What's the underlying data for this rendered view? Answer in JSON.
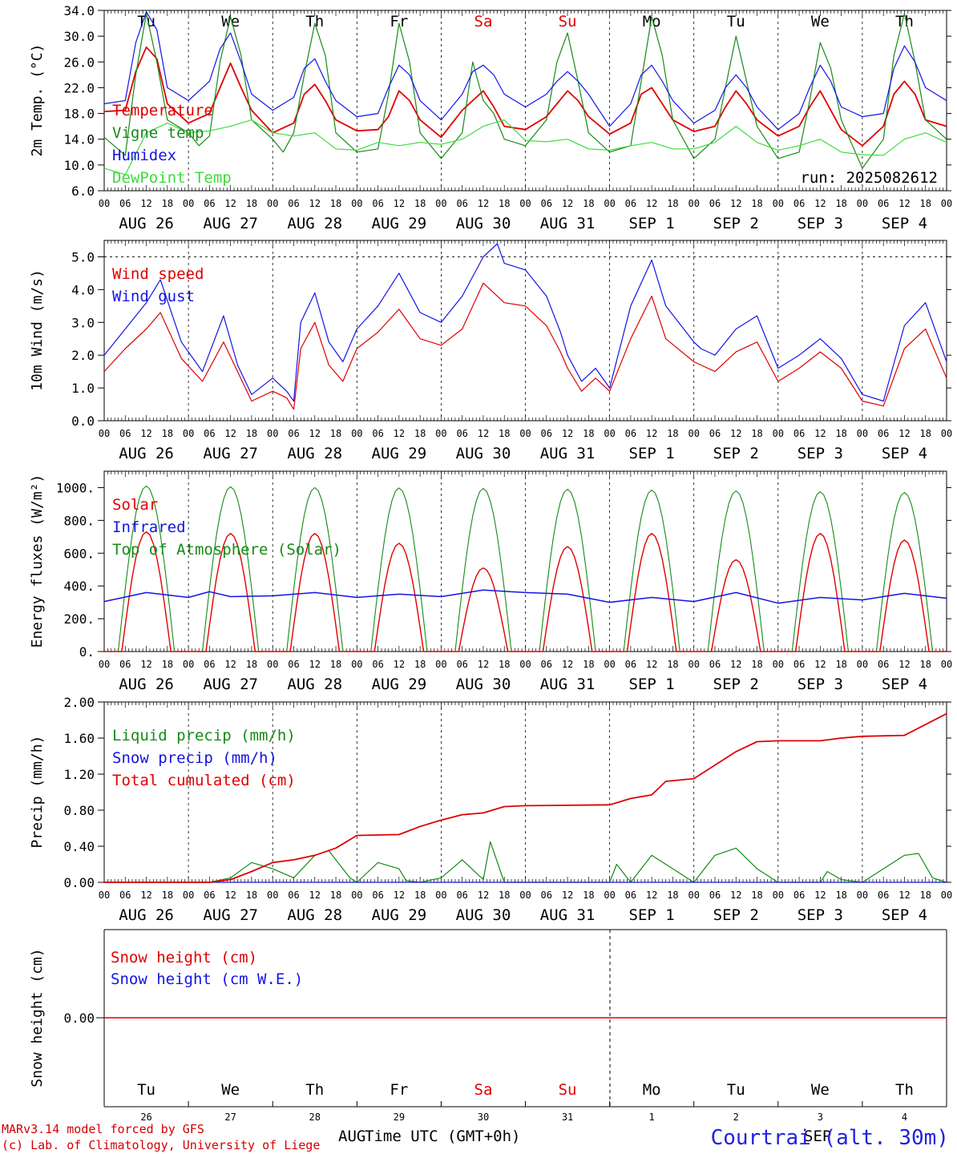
{
  "colors": {
    "red": "#e00000",
    "green": "#168a16",
    "blue": "#1414e6",
    "lightgreen": "#3cdc3c",
    "weekend": "#e00000"
  },
  "days": {
    "dow": [
      "Tu",
      "We",
      "Th",
      "Fr",
      "Sa",
      "Su",
      "Mo",
      "Tu",
      "We",
      "Th"
    ],
    "weekend_flags": [
      false,
      false,
      false,
      false,
      true,
      true,
      false,
      false,
      false,
      false
    ],
    "dates": [
      "AUG 26",
      "AUG 27",
      "AUG 28",
      "AUG 29",
      "AUG 30",
      "AUG 31",
      "SEP  1",
      "SEP  2",
      "SEP  3",
      "SEP  4"
    ],
    "day_numbers": [
      "26",
      "27",
      "28",
      "29",
      "30",
      "31",
      "1",
      "2",
      "3",
      "4"
    ],
    "hour_ticks": [
      "00",
      "06",
      "12",
      "18"
    ],
    "final_hour": "00"
  },
  "footer": {
    "model": "MARv3.14 model forced by GFS",
    "lab": "(c) Lab. of Climatology, University of Liege",
    "month_left": "AUG",
    "month_right": "SEP",
    "xaxis_title": "Time UTC (GMT+0h)",
    "station": "Courtrai (alt. 30m)"
  },
  "chart_data": [
    {
      "type": "line",
      "ylabel": "2m Temp. (°C)",
      "ylim": [
        6,
        34
      ],
      "yticks": [
        "34.0",
        "30.0",
        "26.0",
        "22.0",
        "18.0",
        "14.0",
        "10.0",
        "6.0"
      ],
      "annotation": "run: 2025082612",
      "x_unit": "hours since AUG 26 00 UTC",
      "legend": [
        "Temperature",
        "Vigne temp",
        "Humidex",
        "DewPoint Temp"
      ],
      "series": [
        {
          "name": "Temperature",
          "color": "red",
          "x": [
            0,
            6,
            9,
            12,
            15,
            18,
            24,
            30,
            33,
            36,
            39,
            42,
            48,
            54,
            57,
            60,
            63,
            66,
            72,
            78,
            81,
            84,
            87,
            90,
            96,
            102,
            105,
            108,
            111,
            114,
            120,
            126,
            129,
            132,
            135,
            138,
            144,
            150,
            153,
            156,
            159,
            162,
            168,
            174,
            177,
            180,
            183,
            186,
            192,
            198,
            201,
            204,
            207,
            210,
            216,
            222,
            225,
            228,
            231,
            234,
            240
          ],
          "y": [
            18.3,
            18.5,
            24.5,
            28.3,
            26.5,
            19.5,
            16.5,
            18,
            22,
            25.8,
            22,
            18.5,
            15,
            16.5,
            21,
            22.5,
            20,
            17,
            15.3,
            15.5,
            17.5,
            21.5,
            20,
            17,
            14.3,
            18.5,
            20,
            21.5,
            19,
            16,
            15.5,
            17.5,
            19.5,
            21.5,
            20,
            17.5,
            14.8,
            16.5,
            21,
            22,
            19.5,
            17,
            15.2,
            16,
            19,
            21.5,
            19.5,
            17,
            14.5,
            16,
            19,
            21.5,
            18.5,
            15.5,
            13,
            16,
            21,
            23,
            21,
            17,
            16
          ]
        },
        {
          "name": "Vigne temp",
          "color": "green",
          "x": [
            0,
            6,
            9,
            12,
            15,
            18,
            24,
            27,
            30,
            33,
            36,
            39,
            42,
            48,
            51,
            54,
            57,
            60,
            63,
            66,
            72,
            78,
            81,
            84,
            87,
            90,
            96,
            102,
            105,
            108,
            111,
            114,
            120,
            126,
            129,
            132,
            135,
            138,
            144,
            150,
            153,
            156,
            159,
            162,
            168,
            174,
            177,
            180,
            183,
            186,
            192,
            198,
            201,
            204,
            207,
            210,
            216,
            222,
            225,
            228,
            231,
            234,
            240
          ],
          "y": [
            14.3,
            11.5,
            24,
            33.5,
            26,
            17,
            15,
            13,
            14.5,
            26,
            33,
            27,
            17,
            14,
            12,
            15,
            24,
            32,
            27,
            15,
            12,
            12.5,
            21,
            32,
            26,
            15,
            11,
            15,
            26,
            20,
            18,
            14,
            13,
            17,
            26,
            30.5,
            23,
            15,
            12,
            13,
            23,
            33,
            27,
            17,
            11,
            14,
            22,
            30,
            23,
            16,
            11,
            12,
            20,
            29,
            25,
            17,
            9.5,
            14,
            27,
            33.5,
            26,
            17,
            14
          ]
        },
        {
          "name": "Humidex",
          "color": "blue",
          "x": [
            0,
            6,
            9,
            12,
            15,
            18,
            24,
            30,
            33,
            36,
            39,
            42,
            48,
            54,
            57,
            60,
            63,
            66,
            72,
            78,
            81,
            84,
            87,
            90,
            96,
            102,
            105,
            108,
            111,
            114,
            120,
            126,
            129,
            132,
            135,
            138,
            144,
            150,
            153,
            156,
            159,
            162,
            168,
            174,
            177,
            180,
            183,
            186,
            192,
            198,
            201,
            204,
            207,
            210,
            216,
            222,
            225,
            228,
            231,
            234,
            240
          ],
          "y": [
            19.5,
            20,
            29,
            33.8,
            31,
            22,
            20,
            23,
            28,
            30.5,
            26,
            21,
            18.5,
            20.5,
            25,
            26.5,
            23,
            20,
            17.5,
            18,
            22,
            25.5,
            24,
            20,
            17,
            21,
            24.5,
            25.5,
            24,
            21,
            19,
            21,
            23,
            24.5,
            23,
            21,
            16,
            19.5,
            24,
            25.5,
            23,
            20,
            16.5,
            18.5,
            22,
            24,
            22,
            19,
            15.5,
            18,
            22,
            25.5,
            23,
            19,
            17.5,
            18,
            25,
            28.5,
            26,
            22,
            20
          ]
        },
        {
          "name": "DewPoint Temp",
          "color": "lightgreen",
          "x": [
            0,
            6,
            12,
            18,
            24,
            30,
            36,
            42,
            48,
            54,
            60,
            66,
            72,
            78,
            84,
            90,
            96,
            102,
            108,
            114,
            120,
            126,
            132,
            138,
            144,
            150,
            156,
            162,
            168,
            174,
            180,
            186,
            192,
            198,
            204,
            210,
            216,
            222,
            228,
            234,
            240
          ],
          "y": [
            9.5,
            8.5,
            15,
            16.5,
            15,
            15.3,
            16,
            17,
            15,
            14.5,
            15,
            12.5,
            12.3,
            13.5,
            13,
            13.5,
            13.2,
            14,
            16,
            17,
            13.8,
            13.6,
            14,
            12.5,
            12.3,
            13,
            13.5,
            12.5,
            12.5,
            13.5,
            16,
            13.5,
            12.3,
            13,
            14,
            12,
            11.6,
            11.5,
            14,
            15,
            13.5
          ]
        }
      ]
    },
    {
      "type": "line",
      "ylabel": "10m Wind (m/s)",
      "ylim": [
        0,
        5.5
      ],
      "yticks": [
        "5.0",
        "4.0",
        "3.0",
        "2.0",
        "1.0",
        "0.0"
      ],
      "x_unit": "hours since AUG 26 00 UTC",
      "legend": [
        "Wind speed",
        "Wind gust"
      ],
      "series": [
        {
          "name": "Wind speed",
          "color": "red",
          "x": [
            0,
            6,
            12,
            16,
            22,
            28,
            34,
            38,
            42,
            48,
            52,
            54,
            56,
            60,
            64,
            68,
            72,
            78,
            84,
            90,
            96,
            102,
            108,
            114,
            120,
            126,
            130,
            132,
            136,
            140,
            144,
            150,
            156,
            160,
            168,
            170,
            174,
            180,
            186,
            192,
            198,
            204,
            210,
            216,
            222,
            228,
            234,
            240
          ],
          "y": [
            1.5,
            2.2,
            2.8,
            3.3,
            1.9,
            1.2,
            2.4,
            1.5,
            0.6,
            0.9,
            0.7,
            0.35,
            2.2,
            3.0,
            1.7,
            1.2,
            2.2,
            2.7,
            3.4,
            2.5,
            2.3,
            2.8,
            4.2,
            3.6,
            3.5,
            2.9,
            2.1,
            1.6,
            0.9,
            1.3,
            0.9,
            2.5,
            3.8,
            2.5,
            1.8,
            1.7,
            1.5,
            2.1,
            2.4,
            1.2,
            1.6,
            2.1,
            1.6,
            0.6,
            0.45,
            2.2,
            2.8,
            1.3
          ]
        },
        {
          "name": "Wind gust",
          "color": "blue",
          "x": [
            0,
            6,
            12,
            16,
            22,
            28,
            34,
            38,
            42,
            48,
            52,
            54,
            56,
            60,
            64,
            68,
            72,
            78,
            84,
            90,
            96,
            102,
            108,
            112,
            114,
            120,
            126,
            130,
            132,
            136,
            140,
            144,
            150,
            156,
            160,
            168,
            170,
            174,
            180,
            186,
            192,
            198,
            204,
            210,
            216,
            222,
            228,
            234,
            240
          ],
          "y": [
            2.0,
            2.8,
            3.6,
            4.3,
            2.4,
            1.5,
            3.2,
            1.7,
            0.8,
            1.3,
            0.9,
            0.6,
            3.0,
            3.9,
            2.4,
            1.8,
            2.8,
            3.5,
            4.5,
            3.3,
            3.0,
            3.8,
            5.0,
            5.4,
            4.8,
            4.6,
            3.8,
            2.7,
            2.0,
            1.2,
            1.6,
            1.0,
            3.5,
            4.9,
            3.5,
            2.4,
            2.2,
            2.0,
            2.8,
            3.2,
            1.6,
            2.0,
            2.5,
            1.9,
            0.8,
            0.6,
            2.9,
            3.6,
            1.8
          ]
        }
      ]
    },
    {
      "type": "line",
      "ylabel": "Energy fluxes (W/m²)",
      "ylim": [
        0,
        1100
      ],
      "yticks": [
        "1000.",
        "800.",
        "600.",
        "400.",
        "200.",
        "0."
      ],
      "x_unit": "hours since AUG 26 00 UTC",
      "legend": [
        "Solar",
        "Infrared",
        "Top of Atmosphere (Solar)"
      ],
      "toa_peaks": [
        1010,
        1005,
        1000,
        998,
        995,
        990,
        985,
        980,
        975,
        970
      ],
      "solar_peaks": [
        730,
        720,
        720,
        660,
        510,
        640,
        720,
        560,
        720,
        680
      ],
      "infrared": {
        "x": [
          0,
          12,
          24,
          30,
          36,
          48,
          60,
          72,
          84,
          96,
          108,
          120,
          132,
          144,
          156,
          168,
          180,
          192,
          204,
          216,
          228,
          240
        ],
        "y": [
          305,
          360,
          330,
          365,
          335,
          340,
          360,
          330,
          350,
          335,
          375,
          360,
          350,
          300,
          330,
          305,
          360,
          295,
          330,
          315,
          355,
          325
        ]
      }
    },
    {
      "type": "line",
      "ylabel": "Precip (mm/h)",
      "ylim": [
        0,
        2
      ],
      "yticks": [
        "2.00",
        "1.60",
        "1.20",
        "0.80",
        "0.40",
        "0.00"
      ],
      "x_unit": "hours since AUG 26 00 UTC",
      "legend": [
        "Liquid precip (mm/h)",
        "Snow precip (mm/h)",
        "Total cumulated (cm)"
      ],
      "series": [
        {
          "name": "Liquid precip (mm/h)",
          "color": "green",
          "x": [
            0,
            30,
            36,
            42,
            48,
            54,
            60,
            64,
            66,
            70,
            72,
            78,
            84,
            86,
            90,
            96,
            102,
            108,
            110,
            114,
            116,
            120,
            144,
            146,
            150,
            156,
            160,
            168,
            174,
            180,
            186,
            192,
            204,
            206,
            210,
            216,
            228,
            232,
            236,
            240
          ],
          "y": [
            0,
            0,
            0.05,
            0.22,
            0.15,
            0.05,
            0.3,
            0.35,
            0.25,
            0.05,
            0,
            0.22,
            0.15,
            0.02,
            0,
            0.05,
            0.25,
            0.03,
            0.45,
            0,
            0,
            0,
            0,
            0.2,
            0,
            0.3,
            0.2,
            0,
            0.3,
            0.38,
            0.15,
            0,
            0,
            0.12,
            0.03,
            0,
            0.3,
            0.32,
            0.05,
            0
          ]
        },
        {
          "name": "Snow precip (mm/h)",
          "color": "blue",
          "x": [
            0,
            240
          ],
          "y": [
            0,
            0
          ]
        },
        {
          "name": "Total cumulated (cm)",
          "color": "red",
          "x": [
            0,
            30,
            36,
            42,
            48,
            54,
            60,
            66,
            72,
            84,
            90,
            96,
            102,
            108,
            114,
            120,
            144,
            150,
            156,
            160,
            168,
            174,
            180,
            186,
            192,
            204,
            210,
            216,
            228,
            234,
            240
          ],
          "y": [
            0,
            0,
            0.03,
            0.12,
            0.22,
            0.25,
            0.3,
            0.38,
            0.52,
            0.53,
            0.62,
            0.69,
            0.75,
            0.77,
            0.84,
            0.85,
            0.86,
            0.93,
            0.97,
            1.12,
            1.15,
            1.3,
            1.45,
            1.56,
            1.57,
            1.57,
            1.6,
            1.62,
            1.63,
            1.75,
            1.87
          ]
        }
      ]
    },
    {
      "type": "line",
      "ylabel": "Snow height (cm)",
      "yticks": [
        "0.00"
      ],
      "x_unit": "hours since AUG 26 00 UTC",
      "legend": [
        "Snow height (cm)",
        "Snow height (cm W.E.)"
      ],
      "series": [
        {
          "name": "Snow height (cm)",
          "color": "red",
          "x": [
            0,
            240
          ],
          "y": [
            0,
            0
          ]
        },
        {
          "name": "Snow height (cm W.E.)",
          "color": "blue",
          "x": [
            0,
            240
          ],
          "y": [
            0,
            0
          ]
        }
      ]
    }
  ]
}
